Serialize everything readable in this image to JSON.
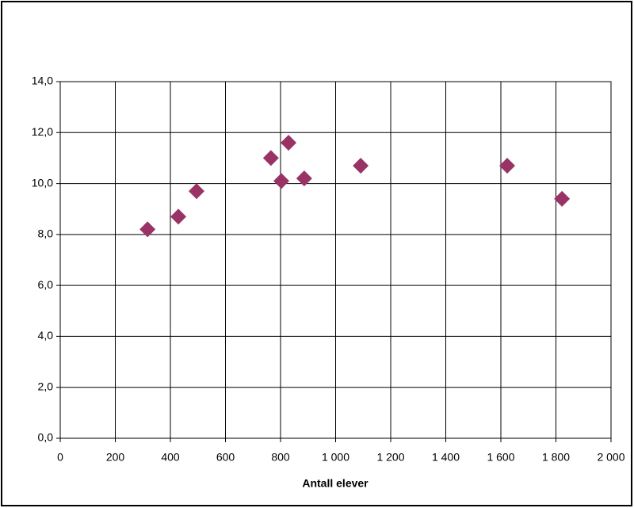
{
  "chart_data": {
    "type": "scatter",
    "xlabel": "Antall elever",
    "x": [
      317,
      429,
      495,
      765,
      829,
      803,
      886,
      1091,
      1623,
      1822
    ],
    "series": [
      {
        "color": "#993366",
        "values": [
          8.2,
          8.7,
          9.7,
          11.0,
          11.6,
          10.1,
          10.2,
          10.7,
          10.7,
          9.4
        ]
      }
    ],
    "xlim": [
      0,
      2000
    ],
    "xticks": [
      0,
      200,
      400,
      600,
      800,
      {
        "value": 1000,
        "label": "1 000"
      },
      {
        "value": 1200,
        "label": "1 200"
      },
      {
        "value": 1400,
        "label": "1 400"
      },
      {
        "value": 1600,
        "label": "1 600"
      },
      {
        "value": 1800,
        "label": "1 800"
      },
      {
        "value": 2000,
        "label": "2 000"
      }
    ],
    "ylim": [
      0,
      14
    ],
    "yticks": [
      {
        "value": 0,
        "label": "0,0"
      },
      {
        "value": 2,
        "label": "2,0"
      },
      {
        "value": 4,
        "label": "4,0"
      },
      {
        "value": 6,
        "label": "6,0"
      },
      {
        "value": 8,
        "label": "8,0"
      },
      {
        "value": 10,
        "label": "10,0"
      },
      {
        "value": 12,
        "label": "12,0"
      },
      {
        "value": 14,
        "label": "14,0"
      }
    ],
    "grid": true
  }
}
